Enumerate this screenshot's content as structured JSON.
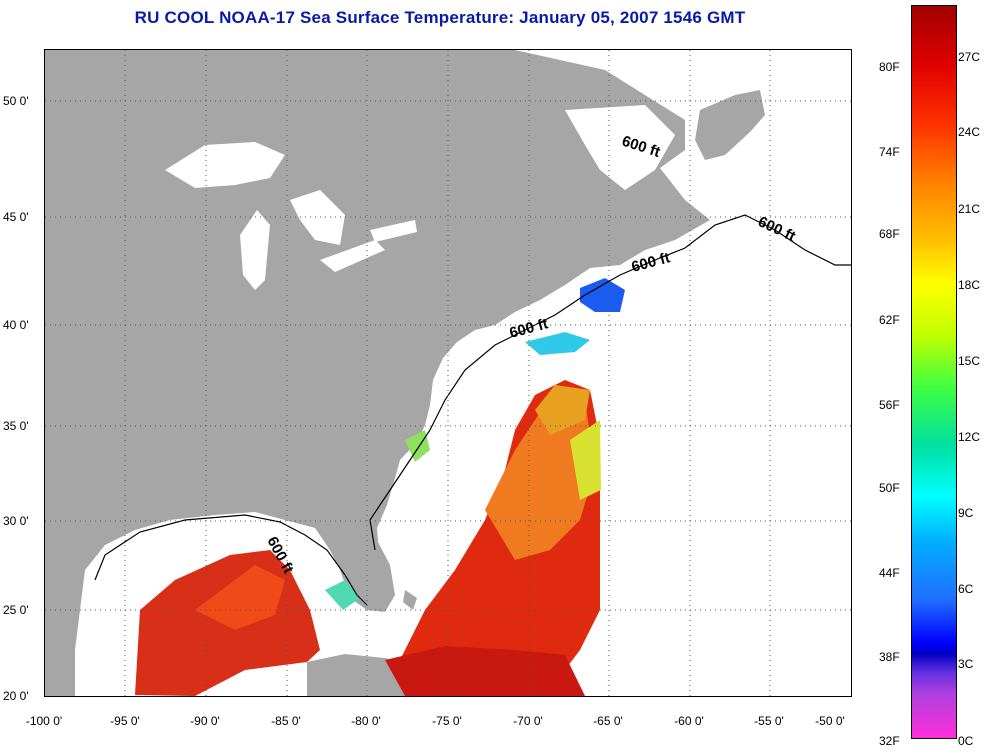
{
  "title": "RU COOL  NOAA-17  Sea Surface Temperature:  January 05, 2007 1546 GMT",
  "map": {
    "x_ticks": [
      "-100 0'",
      "-95 0'",
      "-90 0'",
      "-85 0'",
      "-80 0'",
      "-75 0'",
      "-70 0'",
      "-65 0'",
      "-60 0'",
      "-55 0'",
      "-50 0'"
    ],
    "y_ticks": [
      "50 0'",
      "45 0'",
      "40 0'",
      "35 0'",
      "30 0'",
      "25 0'",
      "20 0'"
    ],
    "lon_range": [
      -100,
      -50
    ],
    "lat_range": [
      20,
      52
    ],
    "isobath_labels": [
      "600 ft",
      "600 ft",
      "600 ft",
      "600 ft",
      "600 ft"
    ],
    "colors": {
      "land": "#a6a6a6",
      "ocean_no_data": "#ffffff",
      "grid": "#555555"
    }
  },
  "colorbar": {
    "fahrenheit": [
      "80F",
      "74F",
      "68F",
      "62F",
      "56F",
      "50F",
      "44F",
      "38F",
      "32F"
    ],
    "celsius": [
      "27C",
      "24C",
      "21C",
      "18C",
      "15C",
      "12C",
      "9C",
      "6C",
      "3C",
      "0C"
    ]
  }
}
